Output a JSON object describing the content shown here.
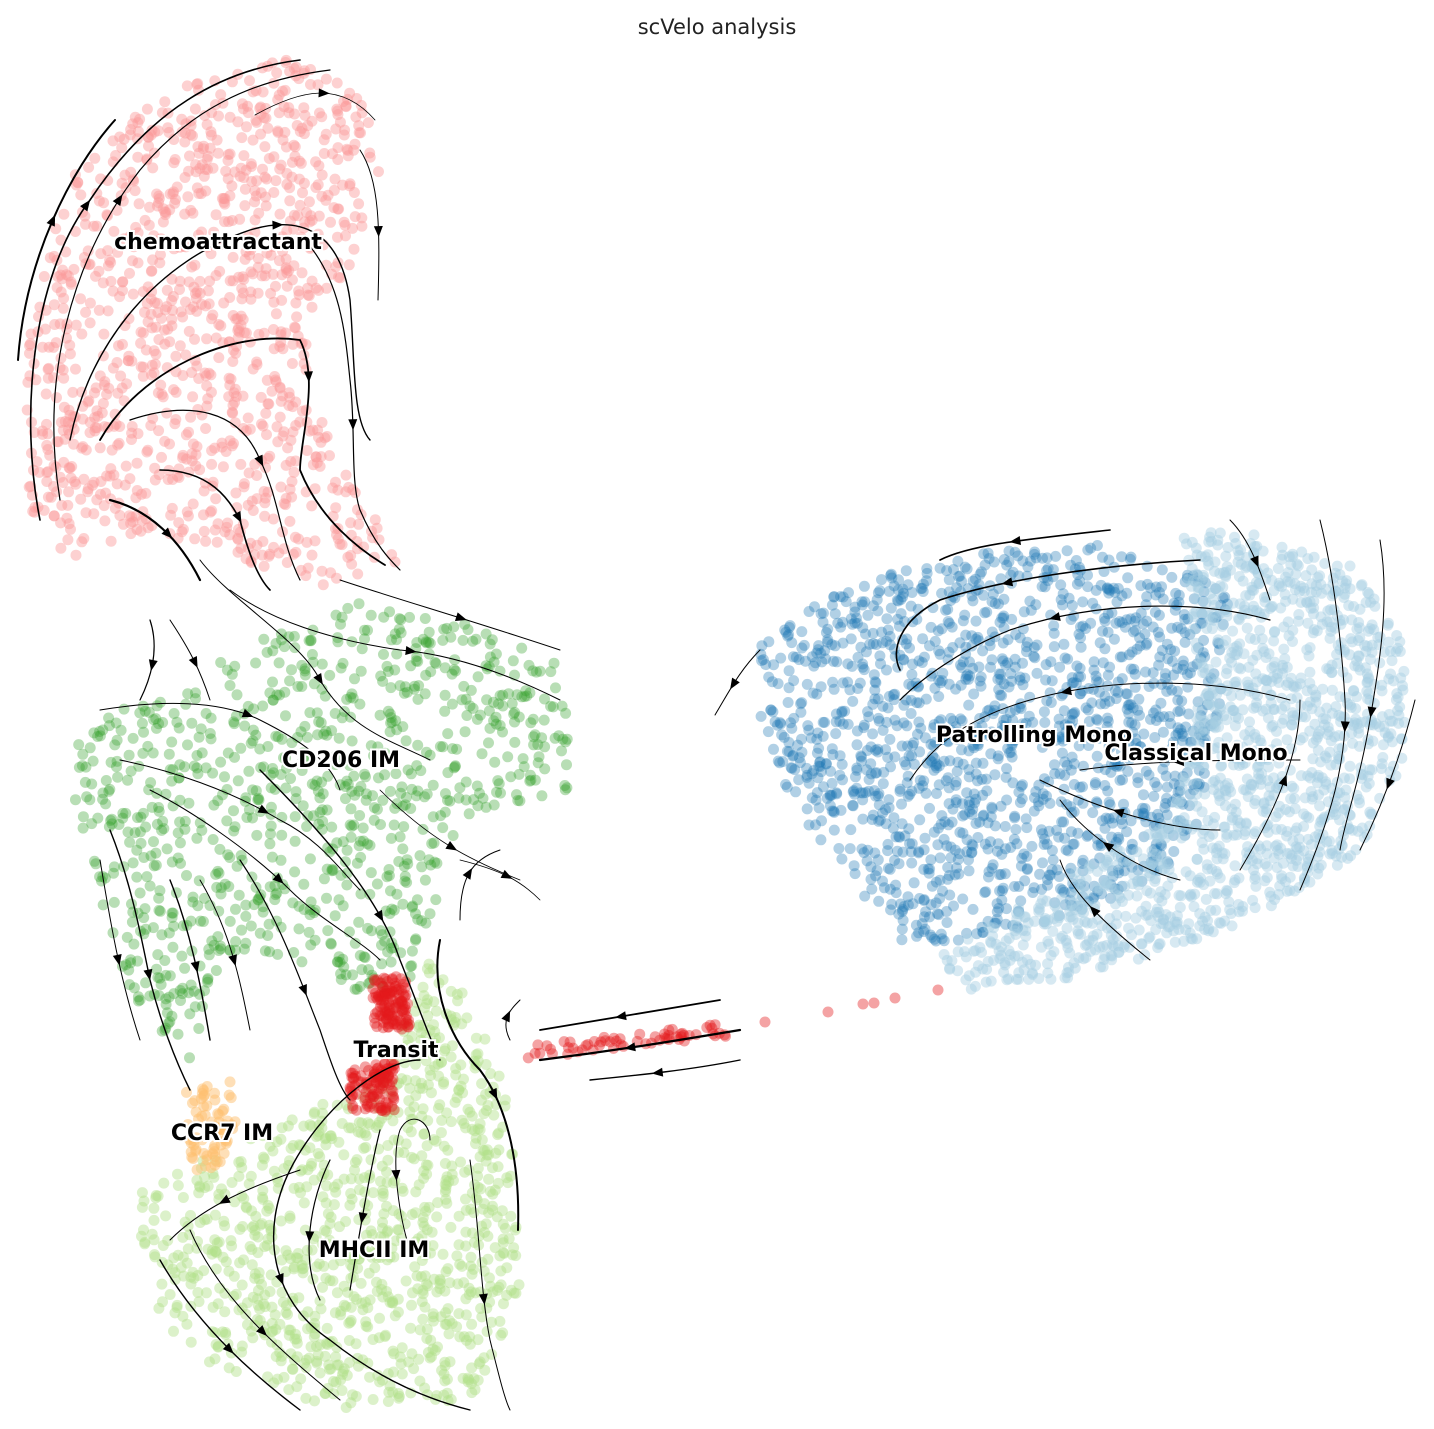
{
  "chart_data": {
    "type": "scatter",
    "title": "scVelo analysis",
    "xlabel": "",
    "ylabel": "",
    "axes_visible": false,
    "grid": false,
    "legend": "on data",
    "overlay": "velocity streamlines with arrowheads",
    "series": [
      {
        "name": "chemoattractant",
        "color": "#fb9a99",
        "alpha": 0.45
      },
      {
        "name": "CD206 IM",
        "color": "#33a02c",
        "alpha": 0.35
      },
      {
        "name": "Transit",
        "color": "#e31a1c",
        "alpha": 0.4
      },
      {
        "name": "CCR7 IM",
        "color": "#fdbf6f",
        "alpha": 0.5
      },
      {
        "name": "MHCII IM",
        "color": "#b2df8a",
        "alpha": 0.45
      },
      {
        "name": "Patrolling Mono",
        "color": "#1f78b4",
        "alpha": 0.35
      },
      {
        "name": "Classical Mono",
        "color": "#a6cee3",
        "alpha": 0.45
      }
    ]
  }
}
